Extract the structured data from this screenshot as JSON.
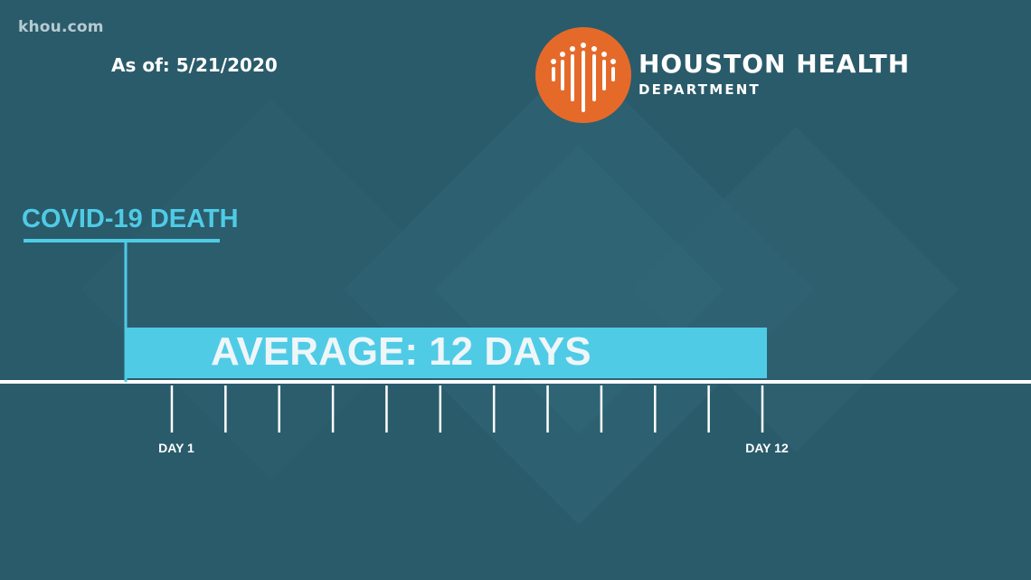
{
  "watermark": "khou.com",
  "as_of": "As of: 5/21/2020",
  "organization": {
    "line1": "HOUSTON HEALTH",
    "line2": "DEPARTMENT",
    "logo_color": "#e56a2a"
  },
  "colors": {
    "background": "#2a5b6a",
    "accent": "#4fcbe6",
    "axis": "#ffffff"
  },
  "chart_data": {
    "type": "bar",
    "title": "",
    "event_label": "COVID-19 DEATH",
    "bar_label": "AVERAGE: 12 DAYS",
    "value": 12,
    "unit": "days",
    "x": [
      1,
      2,
      3,
      4,
      5,
      6,
      7,
      8,
      9,
      10,
      11,
      12
    ],
    "tick_labels": [
      {
        "x": 1,
        "text": "DAY 1"
      },
      {
        "x": 12,
        "text": "DAY 12"
      }
    ],
    "xlim": [
      1,
      12
    ],
    "grid": false,
    "legend": "none"
  }
}
